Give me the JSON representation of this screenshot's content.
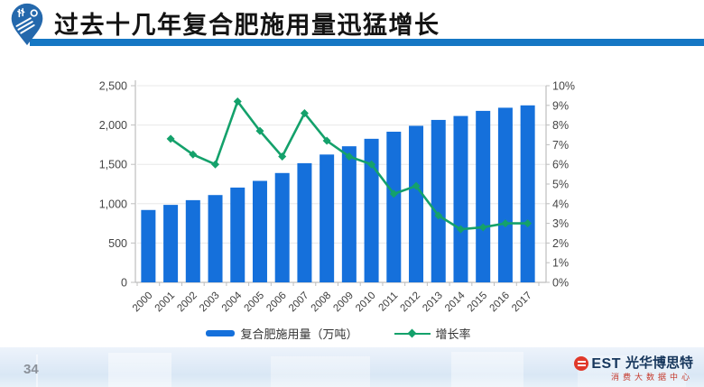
{
  "header": {
    "title": "过去十几年复合肥施用量迅猛增长",
    "accent_color": "#1577C4",
    "logo_icon": "farm-pin-icon"
  },
  "footer": {
    "page_number": "34",
    "brand": {
      "best": "EST",
      "name": "光华博思特",
      "subtitle": "消费大数据中心",
      "logo_color": "#E0392A",
      "text_color": "#16365C",
      "subtitle_color": "#C5392C"
    }
  },
  "chart_data": {
    "type": "bar+line",
    "categories": [
      "2000",
      "2001",
      "2002",
      "2003",
      "2004",
      "2005",
      "2006",
      "2007",
      "2008",
      "2009",
      "2010",
      "2011",
      "2012",
      "2013",
      "2014",
      "2015",
      "2016",
      "2017"
    ],
    "series": [
      {
        "name": "复合肥施用量（万吨）",
        "type": "bar",
        "axis": "left",
        "color": "#1570DB",
        "values": [
          920,
          985,
          1045,
          1110,
          1205,
          1290,
          1390,
          1515,
          1625,
          1730,
          1825,
          1915,
          1990,
          2065,
          2115,
          2180,
          2220,
          2250
        ]
      },
      {
        "name": "增长率",
        "type": "line",
        "axis": "right",
        "color": "#14A16B",
        "values": [
          null,
          7.3,
          6.5,
          6.0,
          9.2,
          7.7,
          6.4,
          8.6,
          7.2,
          6.4,
          6.0,
          4.5,
          4.9,
          3.4,
          2.7,
          2.8,
          3.0,
          3.0
        ]
      }
    ],
    "left_axis": {
      "min": 0,
      "max": 2500,
      "ticks": [
        "0",
        "500",
        "1,000",
        "1,500",
        "2,000",
        "2,500"
      ]
    },
    "right_axis": {
      "min": 0,
      "max": 10,
      "ticks": [
        "0%",
        "1%",
        "2%",
        "3%",
        "4%",
        "5%",
        "6%",
        "7%",
        "8%",
        "9%",
        "10%"
      ]
    },
    "legend_position": "bottom",
    "grid": true,
    "axis_color": "#BFBFBF",
    "grid_color": "#E8E8E8",
    "tick_text_color": "#454545"
  }
}
